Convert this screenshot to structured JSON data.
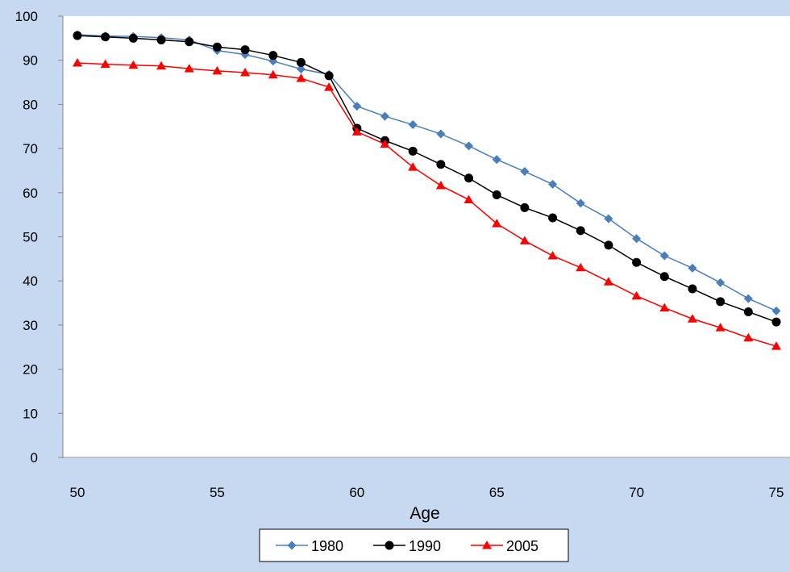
{
  "chart_data": {
    "type": "line",
    "title": "",
    "xlabel": "Age",
    "ylabel": "",
    "xlim": [
      50,
      75
    ],
    "ylim": [
      0,
      100
    ],
    "x_ticks": [
      "50",
      "55",
      "60",
      "65",
      "70",
      "75"
    ],
    "y_ticks": [
      "0",
      "10",
      "20",
      "30",
      "40",
      "50",
      "60",
      "70",
      "80",
      "90",
      "100"
    ],
    "grid": false,
    "legend_position": "bottom",
    "x": [
      50,
      51,
      52,
      53,
      54,
      55,
      56,
      57,
      58,
      59,
      60,
      61,
      62,
      63,
      64,
      65,
      66,
      67,
      68,
      69,
      70,
      71,
      72,
      73,
      74,
      75
    ],
    "series": [
      {
        "name": "1980",
        "color": "#4a7ebb",
        "marker": "diamond",
        "values": [
          95.8,
          95.5,
          95.4,
          95.1,
          94.6,
          92.2,
          91.3,
          89.8,
          88.0,
          86.8,
          79.6,
          77.3,
          75.4,
          73.3,
          70.6,
          67.5,
          64.8,
          61.9,
          57.6,
          54.1,
          49.6,
          45.7,
          42.9,
          39.6,
          36.0,
          33.2
        ]
      },
      {
        "name": "1990",
        "color": "#000000",
        "marker": "circle",
        "values": [
          95.6,
          95.3,
          95.0,
          94.6,
          94.2,
          93.0,
          92.4,
          91.1,
          89.5,
          86.5,
          74.6,
          71.8,
          69.4,
          66.4,
          63.3,
          59.5,
          56.6,
          54.3,
          51.4,
          48.1,
          44.2,
          41.0,
          38.2,
          35.3,
          33.0,
          30.7
        ]
      },
      {
        "name": "2005",
        "color": "#ff0000",
        "marker": "triangle",
        "values": [
          89.4,
          89.1,
          88.9,
          88.7,
          88.1,
          87.6,
          87.2,
          86.7,
          85.9,
          83.9,
          73.8,
          71.0,
          65.8,
          61.6,
          58.4,
          53.0,
          49.1,
          45.7,
          43.0,
          39.8,
          36.6,
          33.9,
          31.4,
          29.4,
          27.1,
          25.2
        ]
      }
    ]
  }
}
